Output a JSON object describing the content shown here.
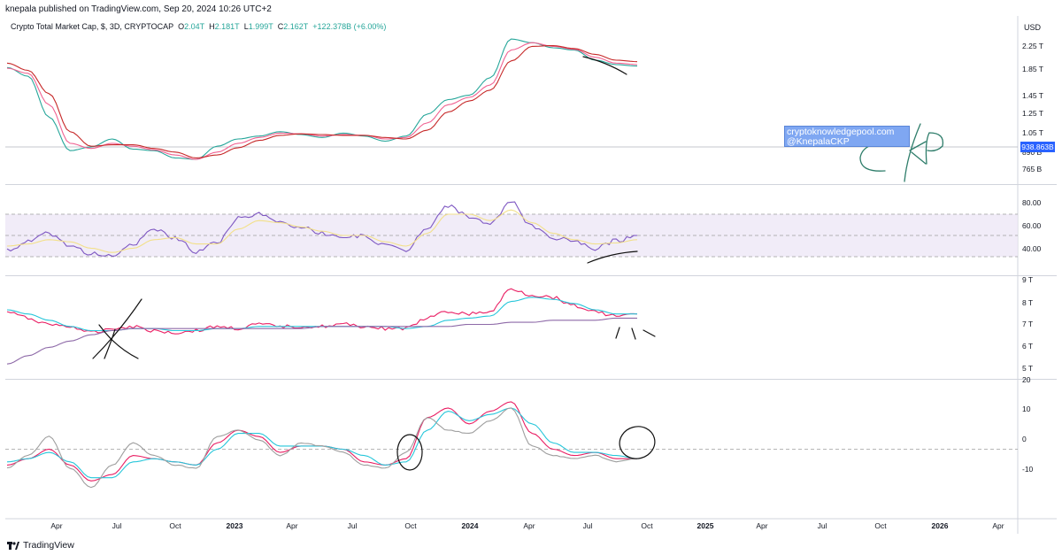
{
  "header": {
    "published_by": "knepala published on TradingView.com, Sep 20, 2024 10:26 UTC+2"
  },
  "symbol": {
    "name": "Crypto Total Market Cap, $, 3D, CRYPTOCAP",
    "open_label": "O",
    "open": "2.04T",
    "high_label": "H",
    "high": "2.181T",
    "low_label": "L",
    "low": "1.999T",
    "close_label": "C",
    "close": "2.162T",
    "change": "+122.378B (+6.00%)"
  },
  "price_axis": {
    "currency": "USD",
    "last_price_tag": "938.863B"
  },
  "watermark": {
    "line1": "cryptoknowledgepool.com",
    "line2": "@KnepalaCKP"
  },
  "annotation_text": "CKP",
  "footer": {
    "brand": "TradingView"
  },
  "colors": {
    "fast_ma": "#26a69a",
    "mid_ma": "#f06292",
    "slow_ma": "#c62828",
    "rsi": "#7e57c2",
    "rsi_ma": "#f2e08a",
    "pane3_price": "#e91e63",
    "pane3_teal": "#26c6da",
    "pane3_slow": "#8e6aa8",
    "link_blue": "#2962ff"
  },
  "chart_data": [
    {
      "type": "line",
      "title": "Crypto Total Market Cap (price pane)",
      "ylabel": "USD",
      "y_ticks": [
        "2.25 T",
        "1.85 T",
        "1.45 T",
        "1.25 T",
        "1.05 T",
        "890 B",
        "765 B"
      ],
      "x": [
        "2022-03",
        "2022-04",
        "2022-05",
        "2022-06",
        "2022-07",
        "2022-08",
        "2022-09",
        "2022-10",
        "2022-11",
        "2022-12",
        "2023-01",
        "2023-02",
        "2023-03",
        "2023-04",
        "2023-05",
        "2023-06",
        "2023-07",
        "2023-08",
        "2023-09",
        "2023-10",
        "2023-11",
        "2023-12",
        "2024-01",
        "2024-02",
        "2024-03",
        "2024-04",
        "2024-05",
        "2024-06",
        "2024-07",
        "2024-08",
        "2024-09"
      ],
      "series": [
        {
          "name": "Fast MA",
          "values": [
            2.06,
            1.94,
            1.38,
            0.92,
            0.97,
            1.08,
            0.94,
            0.92,
            0.82,
            0.8,
            0.98,
            1.08,
            1.12,
            1.18,
            1.14,
            1.1,
            1.16,
            1.12,
            1.05,
            1.12,
            1.42,
            1.62,
            1.68,
            1.92,
            2.45,
            2.4,
            2.33,
            2.3,
            2.16,
            2.1,
            2.08
          ]
        },
        {
          "name": "Mid MA",
          "values": [
            2.05,
            1.98,
            1.55,
            1.02,
            0.95,
            1.02,
            0.98,
            0.93,
            0.86,
            0.8,
            0.9,
            1.02,
            1.1,
            1.16,
            1.15,
            1.12,
            1.14,
            1.13,
            1.08,
            1.1,
            1.3,
            1.55,
            1.65,
            1.82,
            2.3,
            2.4,
            2.35,
            2.31,
            2.2,
            2.12,
            2.1
          ]
        },
        {
          "name": "Slow MA",
          "values": [
            2.12,
            2.02,
            1.7,
            1.18,
            0.98,
            1.0,
            1.0,
            0.95,
            0.9,
            0.82,
            0.86,
            0.96,
            1.06,
            1.13,
            1.15,
            1.14,
            1.13,
            1.13,
            1.1,
            1.08,
            1.2,
            1.45,
            1.6,
            1.75,
            2.15,
            2.35,
            2.36,
            2.32,
            2.24,
            2.16,
            2.14
          ]
        }
      ],
      "y_range": [
        0.74,
        2.5
      ],
      "annotations": [
        "drawn bearish divergence line under price near Aug–Sep 2024"
      ]
    },
    {
      "type": "line",
      "title": "RSI pane",
      "y_ticks": [
        "80.00",
        "60.00",
        "40.00"
      ],
      "bands": [
        70,
        50,
        30
      ],
      "x": [
        "2022-03",
        "2022-04",
        "2022-05",
        "2022-06",
        "2022-07",
        "2022-08",
        "2022-09",
        "2022-10",
        "2022-11",
        "2022-12",
        "2023-01",
        "2023-02",
        "2023-03",
        "2023-04",
        "2023-05",
        "2023-06",
        "2023-07",
        "2023-08",
        "2023-09",
        "2023-10",
        "2023-11",
        "2023-12",
        "2024-01",
        "2024-02",
        "2024-03",
        "2024-04",
        "2024-05",
        "2024-06",
        "2024-07",
        "2024-08",
        "2024-09"
      ],
      "series": [
        {
          "name": "RSI",
          "values": [
            36,
            44,
            52,
            40,
            33,
            30,
            42,
            55,
            48,
            35,
            44,
            66,
            70,
            62,
            58,
            52,
            48,
            50,
            40,
            36,
            58,
            78,
            68,
            60,
            82,
            58,
            48,
            44,
            38,
            45,
            50
          ]
        },
        {
          "name": "RSI MA",
          "values": [
            40,
            42,
            46,
            44,
            38,
            34,
            38,
            46,
            48,
            42,
            42,
            56,
            64,
            62,
            58,
            54,
            50,
            50,
            44,
            40,
            52,
            70,
            70,
            64,
            74,
            62,
            52,
            46,
            42,
            43,
            46
          ]
        }
      ],
      "y_range": [
        20,
        90
      ],
      "annotations": [
        "drawn bullish divergence line under RSI near Aug–Sep 2024"
      ]
    },
    {
      "type": "line",
      "title": "Trend pane",
      "y_ticks": [
        "9 T",
        "8 T",
        "7 T",
        "6 T",
        "5 T"
      ],
      "x": [
        "2022-03",
        "2022-04",
        "2022-05",
        "2022-06",
        "2022-07",
        "2022-08",
        "2022-09",
        "2022-10",
        "2022-11",
        "2022-12",
        "2023-01",
        "2023-02",
        "2023-03",
        "2023-04",
        "2023-05",
        "2023-06",
        "2023-07",
        "2023-08",
        "2023-09",
        "2023-10",
        "2023-11",
        "2023-12",
        "2024-01",
        "2024-02",
        "2024-03",
        "2024-04",
        "2024-05",
        "2024-06",
        "2024-07",
        "2024-08",
        "2024-09"
      ],
      "series": [
        {
          "name": "Price",
          "values": [
            7.6,
            7.3,
            7.0,
            6.9,
            6.6,
            6.8,
            6.9,
            6.7,
            6.6,
            6.7,
            6.9,
            6.8,
            7.0,
            6.9,
            6.9,
            6.9,
            7.0,
            6.9,
            6.8,
            6.8,
            7.3,
            7.6,
            7.5,
            7.6,
            8.7,
            8.4,
            8.3,
            7.9,
            7.6,
            7.4,
            7.5
          ]
        },
        {
          "name": "Signal",
          "values": [
            7.7,
            7.5,
            7.2,
            6.9,
            6.7,
            6.7,
            6.8,
            6.8,
            6.7,
            6.7,
            6.8,
            6.8,
            6.9,
            6.9,
            6.9,
            6.9,
            6.9,
            6.9,
            6.9,
            6.8,
            6.9,
            7.2,
            7.3,
            7.4,
            8.1,
            8.3,
            8.2,
            8.0,
            7.7,
            7.5,
            7.5
          ]
        },
        {
          "name": "Slow",
          "values": [
            5.1,
            5.5,
            5.9,
            6.2,
            6.5,
            6.7,
            6.8,
            6.8,
            6.8,
            6.8,
            6.8,
            6.8,
            6.8,
            6.8,
            6.8,
            6.9,
            6.9,
            6.9,
            6.9,
            6.9,
            6.9,
            6.9,
            7.0,
            7.0,
            7.1,
            7.1,
            7.2,
            7.2,
            7.2,
            7.3,
            7.3
          ]
        }
      ],
      "y_range": [
        4.6,
        9.1
      ],
      "annotations": [
        "drawn X cross around Jul 2022",
        "drawn marks below price near Sep 2024"
      ]
    },
    {
      "type": "line",
      "title": "Oscillator pane",
      "y_ticks": [
        "20",
        "10",
        "0",
        "-10"
      ],
      "zero_line": 0,
      "x": [
        "2022-03",
        "2022-04",
        "2022-05",
        "2022-06",
        "2022-07",
        "2022-08",
        "2022-09",
        "2022-10",
        "2022-11",
        "2022-12",
        "2023-01",
        "2023-02",
        "2023-03",
        "2023-04",
        "2023-05",
        "2023-06",
        "2023-07",
        "2023-08",
        "2023-09",
        "2023-10",
        "2023-11",
        "2023-12",
        "2024-01",
        "2024-02",
        "2024-03",
        "2024-04",
        "2024-05",
        "2024-06",
        "2024-07",
        "2024-08",
        "2024-09"
      ],
      "series": [
        {
          "name": "Oscillator",
          "values": [
            -5,
            -3,
            0,
            -5,
            -10,
            -8,
            -2,
            -3,
            -4,
            -5,
            2,
            6,
            4,
            -1,
            1,
            1,
            0,
            -4,
            -5,
            -3,
            10,
            13,
            8,
            12,
            15,
            5,
            0,
            -2,
            -1,
            -3,
            -3
          ]
        },
        {
          "name": "Signal",
          "values": [
            -4,
            -3,
            -1,
            -4,
            -9,
            -9,
            -4,
            -3,
            -4,
            -5,
            0,
            5,
            5,
            1,
            1,
            1,
            0,
            -2,
            -5,
            -4,
            6,
            12,
            9,
            11,
            13,
            8,
            2,
            -1,
            -1,
            -2,
            -3
          ]
        },
        {
          "name": "Histogram",
          "values": [
            -6,
            -2,
            4,
            -6,
            -12,
            -5,
            2,
            -2,
            -5,
            -6,
            4,
            6,
            3,
            -2,
            2,
            1,
            -1,
            -5,
            -6,
            -1,
            10,
            6,
            5,
            9,
            13,
            1,
            -2,
            -3,
            -2,
            -4,
            -3
          ]
        }
      ],
      "y_range": [
        -20,
        20
      ],
      "annotations": [
        "drawn circle around crossover Oct 2023",
        "drawn circle around crossover Sep 2024"
      ]
    }
  ],
  "x_axis": {
    "labels": [
      "Apr",
      "Jul",
      "Oct",
      "2023",
      "Apr",
      "Jul",
      "Oct",
      "2024",
      "Apr",
      "Jul",
      "Oct",
      "2025",
      "Apr",
      "Jul",
      "Oct",
      "2026",
      "Apr"
    ]
  }
}
